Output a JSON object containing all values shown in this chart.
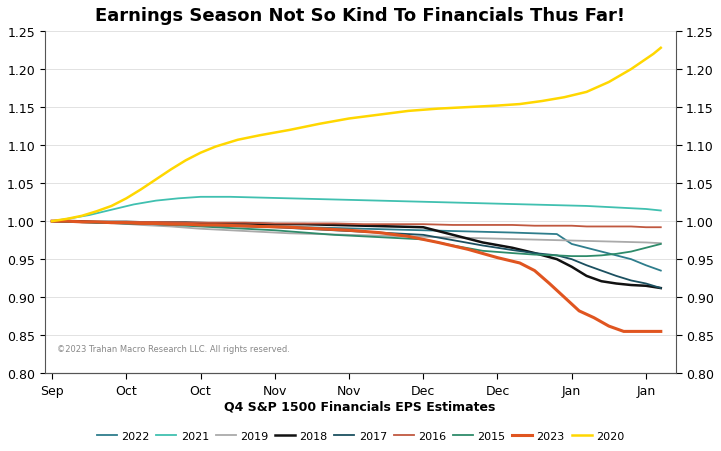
{
  "title": "Earnings Season Not So Kind To Financials Thus Far!",
  "xlabel": "Q4 S&P 1500 Financials EPS Estimates",
  "ylim": [
    0.8,
    1.25
  ],
  "yticks": [
    0.8,
    0.85,
    0.9,
    0.95,
    1.0,
    1.05,
    1.1,
    1.15,
    1.2,
    1.25
  ],
  "watermark": "©2023 Trahan Macro Research LLC. All rights reserved.",
  "xtick_pos": [
    0,
    10,
    20,
    30,
    40,
    50,
    60,
    70,
    80
  ],
  "xtick_labels": [
    "Sep",
    "Oct",
    "Oct",
    "Nov",
    "Nov",
    "Dec",
    "Dec",
    "Jan",
    "Jan"
  ],
  "series": {
    "2022": {
      "color": "#2E7D8C",
      "linewidth": 1.3,
      "x": [
        0,
        2,
        4,
        6,
        8,
        10,
        12,
        15,
        18,
        22,
        26,
        30,
        34,
        38,
        42,
        46,
        50,
        54,
        58,
        62,
        65,
        68,
        70,
        72,
        74,
        76,
        78,
        80,
        82
      ],
      "y": [
        1.0,
        1.0,
        0.999,
        0.999,
        0.998,
        0.997,
        0.997,
        0.996,
        0.996,
        0.995,
        0.994,
        0.993,
        0.992,
        0.991,
        0.99,
        0.989,
        0.988,
        0.987,
        0.986,
        0.985,
        0.984,
        0.983,
        0.97,
        0.965,
        0.96,
        0.955,
        0.95,
        0.942,
        0.935
      ]
    },
    "2021": {
      "color": "#40C0B0",
      "linewidth": 1.3,
      "x": [
        0,
        2,
        5,
        8,
        11,
        14,
        17,
        20,
        24,
        28,
        32,
        36,
        40,
        44,
        48,
        52,
        56,
        60,
        64,
        68,
        72,
        76,
        80,
        82
      ],
      "y": [
        1.0,
        1.003,
        1.008,
        1.015,
        1.022,
        1.027,
        1.03,
        1.032,
        1.032,
        1.031,
        1.03,
        1.029,
        1.028,
        1.027,
        1.026,
        1.025,
        1.024,
        1.023,
        1.022,
        1.021,
        1.02,
        1.018,
        1.016,
        1.014
      ]
    },
    "2019": {
      "color": "#AAAAAA",
      "linewidth": 1.3,
      "x": [
        0,
        3,
        6,
        9,
        12,
        16,
        20,
        24,
        28,
        32,
        36,
        40,
        44,
        48,
        52,
        56,
        60,
        64,
        68,
        72,
        76,
        80,
        82
      ],
      "y": [
        1.0,
        0.999,
        0.998,
        0.997,
        0.995,
        0.993,
        0.99,
        0.988,
        0.986,
        0.984,
        0.983,
        0.982,
        0.981,
        0.98,
        0.979,
        0.978,
        0.977,
        0.976,
        0.975,
        0.974,
        0.973,
        0.972,
        0.971
      ]
    },
    "2018": {
      "color": "#111111",
      "linewidth": 1.8,
      "x": [
        0,
        3,
        6,
        10,
        14,
        18,
        22,
        26,
        30,
        34,
        38,
        42,
        46,
        50,
        54,
        58,
        62,
        65,
        68,
        70,
        72,
        74,
        76,
        78,
        80,
        82
      ],
      "y": [
        1.0,
        1.0,
        0.999,
        0.999,
        0.998,
        0.998,
        0.997,
        0.997,
        0.996,
        0.996,
        0.995,
        0.994,
        0.993,
        0.992,
        0.982,
        0.972,
        0.965,
        0.958,
        0.95,
        0.94,
        0.928,
        0.921,
        0.918,
        0.916,
        0.915,
        0.912
      ]
    },
    "2017": {
      "color": "#1B5060",
      "linewidth": 1.3,
      "x": [
        0,
        3,
        6,
        10,
        14,
        18,
        22,
        26,
        30,
        34,
        38,
        42,
        46,
        50,
        54,
        58,
        62,
        65,
        68,
        70,
        72,
        74,
        76,
        78,
        80,
        82
      ],
      "y": [
        1.0,
        0.999,
        0.998,
        0.997,
        0.996,
        0.995,
        0.994,
        0.993,
        0.992,
        0.99,
        0.988,
        0.986,
        0.984,
        0.982,
        0.975,
        0.968,
        0.962,
        0.958,
        0.955,
        0.95,
        0.942,
        0.935,
        0.928,
        0.922,
        0.918,
        0.912
      ]
    },
    "2016": {
      "color": "#C05840",
      "linewidth": 1.3,
      "x": [
        0,
        3,
        6,
        10,
        14,
        18,
        22,
        26,
        30,
        34,
        38,
        42,
        46,
        50,
        54,
        58,
        62,
        65,
        68,
        70,
        72,
        74,
        76,
        78,
        80,
        82
      ],
      "y": [
        1.0,
        1.0,
        0.999,
        0.999,
        0.999,
        0.998,
        0.998,
        0.998,
        0.997,
        0.997,
        0.997,
        0.996,
        0.996,
        0.996,
        0.995,
        0.995,
        0.995,
        0.994,
        0.994,
        0.994,
        0.993,
        0.993,
        0.993,
        0.993,
        0.992,
        0.992
      ]
    },
    "2015": {
      "color": "#2E8B6A",
      "linewidth": 1.3,
      "x": [
        0,
        3,
        6,
        10,
        14,
        18,
        22,
        26,
        30,
        34,
        38,
        42,
        46,
        50,
        54,
        58,
        62,
        65,
        68,
        70,
        72,
        74,
        76,
        78,
        80,
        82
      ],
      "y": [
        1.0,
        0.999,
        0.998,
        0.997,
        0.996,
        0.994,
        0.992,
        0.99,
        0.988,
        0.985,
        0.982,
        0.98,
        0.978,
        0.976,
        0.968,
        0.961,
        0.958,
        0.956,
        0.955,
        0.954,
        0.954,
        0.955,
        0.957,
        0.96,
        0.965,
        0.97
      ]
    },
    "2023": {
      "color": "#E05520",
      "linewidth": 2.2,
      "x": [
        0,
        2,
        4,
        6,
        8,
        10,
        12,
        14,
        16,
        18,
        20,
        22,
        25,
        28,
        32,
        36,
        40,
        44,
        48,
        52,
        56,
        60,
        63,
        65,
        67,
        69,
        71,
        73,
        75,
        77,
        79,
        81,
        82
      ],
      "y": [
        1.0,
        1.0,
        0.999,
        0.999,
        0.998,
        0.998,
        0.997,
        0.997,
        0.996,
        0.996,
        0.995,
        0.995,
        0.994,
        0.993,
        0.992,
        0.99,
        0.988,
        0.985,
        0.98,
        0.972,
        0.963,
        0.952,
        0.945,
        0.935,
        0.918,
        0.9,
        0.882,
        0.873,
        0.862,
        0.855,
        0.855,
        0.855,
        0.855
      ]
    },
    "2020": {
      "color": "#FFD700",
      "linewidth": 1.8,
      "x": [
        0,
        2,
        4,
        6,
        8,
        10,
        12,
        14,
        16,
        18,
        20,
        22,
        25,
        28,
        32,
        36,
        40,
        44,
        48,
        52,
        56,
        60,
        63,
        66,
        69,
        72,
        75,
        78,
        81,
        82
      ],
      "y": [
        1.0,
        1.003,
        1.007,
        1.013,
        1.02,
        1.03,
        1.042,
        1.055,
        1.068,
        1.08,
        1.09,
        1.098,
        1.107,
        1.113,
        1.12,
        1.128,
        1.135,
        1.14,
        1.145,
        1.148,
        1.15,
        1.152,
        1.154,
        1.158,
        1.163,
        1.17,
        1.183,
        1.2,
        1.22,
        1.228
      ]
    }
  },
  "legend_order": [
    "2022",
    "2021",
    "2019",
    "2018",
    "2017",
    "2016",
    "2015",
    "2023",
    "2020"
  ],
  "legend_colors": {
    "2022": "#2E7D8C",
    "2021": "#40C0B0",
    "2019": "#AAAAAA",
    "2018": "#111111",
    "2017": "#1B5060",
    "2016": "#C05840",
    "2015": "#2E8B6A",
    "2023": "#E05520",
    "2020": "#FFD700"
  },
  "legend_linewidths": {
    "2022": 1.3,
    "2021": 1.3,
    "2019": 1.3,
    "2018": 1.8,
    "2017": 1.3,
    "2016": 1.3,
    "2015": 1.3,
    "2023": 2.2,
    "2020": 1.8
  }
}
